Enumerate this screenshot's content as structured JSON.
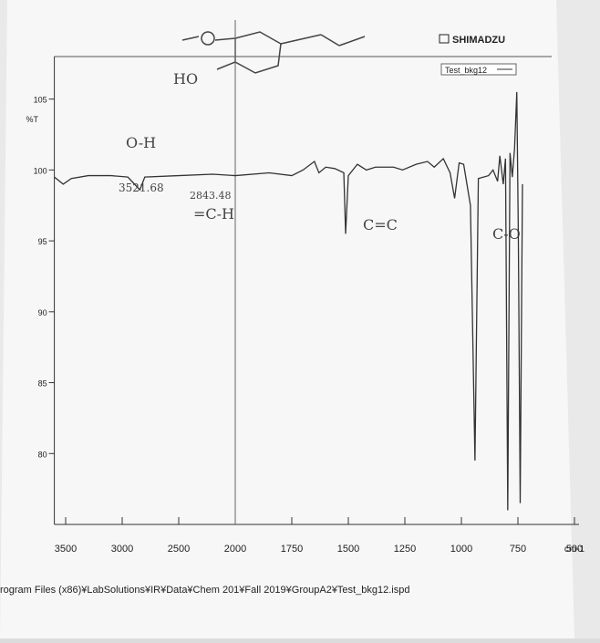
{
  "chart_data": {
    "type": "line",
    "brand": "SHIMADZU",
    "y_axis_label": "%T",
    "x_axis_label": "cm-1",
    "structure_label": "HO",
    "file_path": "rogram Files (x86)¥LabSolutions¥IR¥Data¥Chem 201¥Fall 2019¥GroupA2¥Test_bkg12.ispd",
    "annotations": [
      "O-H",
      "3521.68",
      "2843.48",
      "=C-H",
      "C=C",
      "C-O"
    ],
    "xlim": [
      3600,
      450
    ],
    "ylim": [
      75,
      108
    ],
    "xticks": [
      3500,
      3000,
      2500,
      2000,
      1750,
      1500,
      1250,
      1000,
      750,
      500
    ],
    "yticks": [
      105,
      100,
      95,
      90,
      85,
      80
    ],
    "series": [
      {
        "name": "Test_bkg12",
        "color": "#333333",
        "x": [
          3600,
          3521.68,
          3450,
          3300,
          3100,
          2950,
          2843.48,
          2800,
          2500,
          2200,
          2000,
          1850,
          1750,
          1700,
          1650,
          1630,
          1600,
          1560,
          1520,
          1512,
          1500,
          1460,
          1420,
          1380,
          1300,
          1260,
          1200,
          1150,
          1120,
          1080,
          1050,
          1030,
          1010,
          990,
          960,
          940,
          925,
          880,
          860,
          840,
          830,
          815,
          805,
          795,
          785,
          775,
          765,
          755,
          748,
          740,
          730
        ],
        "values": [
          99.5,
          99.0,
          99.4,
          99.6,
          99.6,
          99.5,
          98.6,
          99.5,
          99.6,
          99.7,
          99.6,
          99.8,
          99.6,
          100.0,
          100.6,
          99.8,
          100.2,
          100.1,
          99.8,
          95.5,
          99.6,
          100.4,
          100.0,
          100.2,
          100.2,
          100.0,
          100.4,
          100.6,
          100.2,
          100.8,
          99.8,
          98.0,
          100.5,
          100.4,
          97.5,
          79.5,
          99.4,
          99.6,
          100.0,
          99.2,
          101.0,
          99.0,
          100.8,
          76.0,
          101.2,
          99.5,
          101.5,
          105.5,
          95.0,
          76.5,
          99.0
        ]
      }
    ]
  }
}
